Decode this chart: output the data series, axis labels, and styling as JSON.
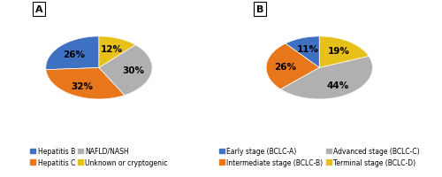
{
  "chart_A": {
    "labels": [
      "Hepatitis B",
      "Hepatitis C",
      "NAFLD/NASH",
      "Unknown or cryptogenic"
    ],
    "values": [
      26,
      32,
      30,
      12
    ],
    "colors": [
      "#3f71c2",
      "#e8761a",
      "#b0b0b0",
      "#e8c01a"
    ],
    "dark_colors": [
      "#2a4e8a",
      "#a04d0a",
      "#707070",
      "#a08000"
    ],
    "pct_labels": [
      "26%",
      "32%",
      "30%",
      "12%"
    ],
    "title": "A",
    "startangle": 90
  },
  "chart_B": {
    "labels": [
      "Early stage (BCLC-A)",
      "Intermediate stage (BCLC-B)",
      "Advanced stage (BCLC-C)",
      "Terminal stage (BCLC-D)"
    ],
    "values": [
      11,
      26,
      44,
      19
    ],
    "colors": [
      "#3f71c2",
      "#e8761a",
      "#b0b0b0",
      "#e8c01a"
    ],
    "dark_colors": [
      "#2a4e8a",
      "#a04d0a",
      "#707070",
      "#a08000"
    ],
    "pct_labels": [
      "11%",
      "26%",
      "44%",
      "19%"
    ],
    "title": "B",
    "startangle": 90
  },
  "legend_fontsize": 5.5,
  "pct_fontsize": 7.5
}
